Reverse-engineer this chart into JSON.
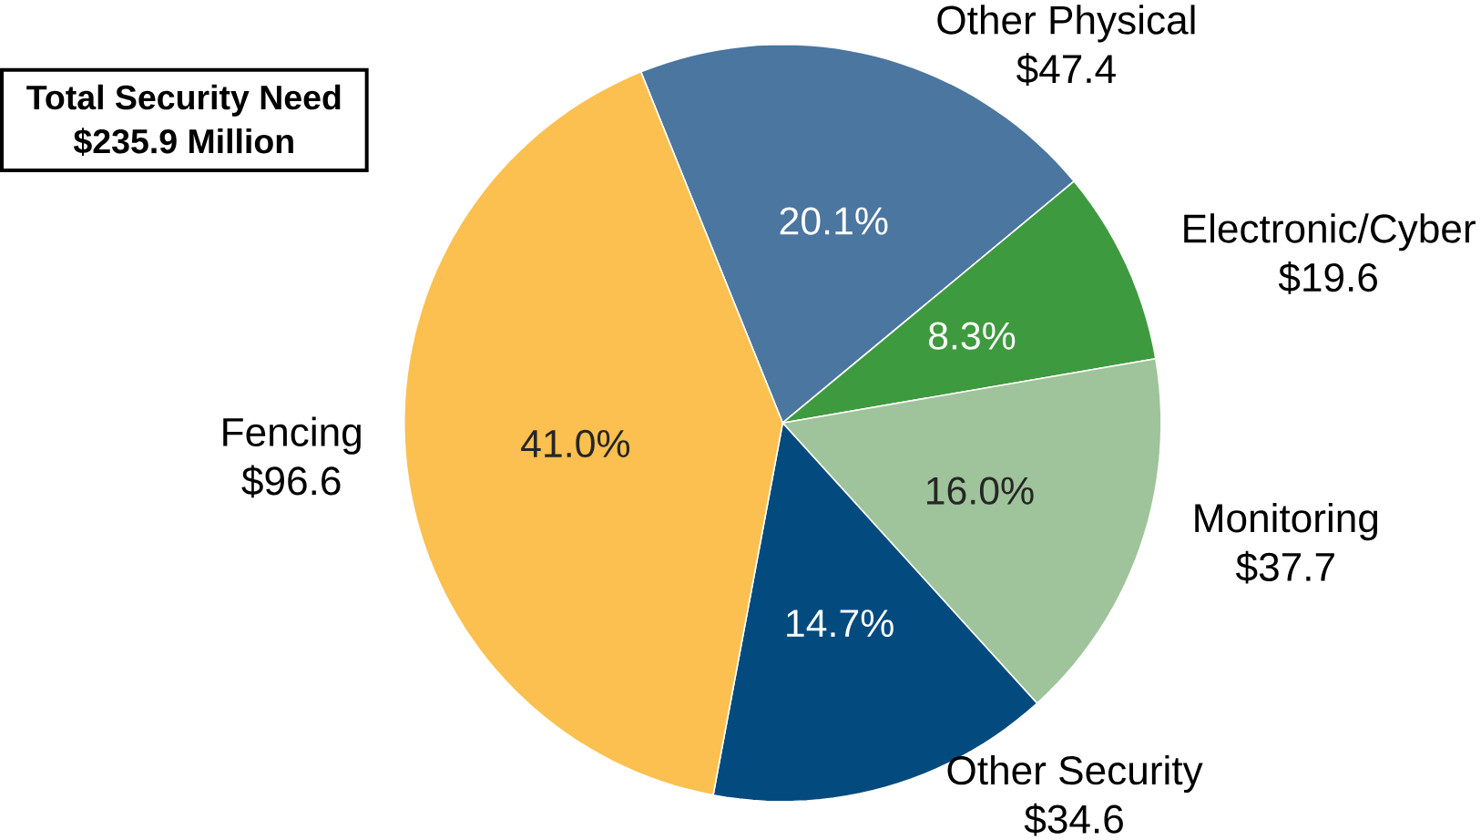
{
  "chart_data": {
    "type": "pie",
    "title": "Total Security Need",
    "subtitle": "$235.9 Million",
    "categories": [
      "Other Physical",
      "Electronic/Cyber",
      "Monitoring",
      "Other Security",
      "Fencing"
    ],
    "values": [
      47.4,
      19.6,
      37.7,
      34.6,
      96.6
    ],
    "value_labels": [
      "$47.4",
      "$19.6",
      "$37.7",
      "$34.6",
      "$96.6"
    ],
    "annotations": [
      "20.1%",
      "8.3%",
      "16.0%",
      "14.7%",
      "41.0%"
    ],
    "colors": [
      "#4a76a0",
      "#3e9a3e",
      "#9fc39a",
      "#034a7e",
      "#fbc04f"
    ]
  }
}
